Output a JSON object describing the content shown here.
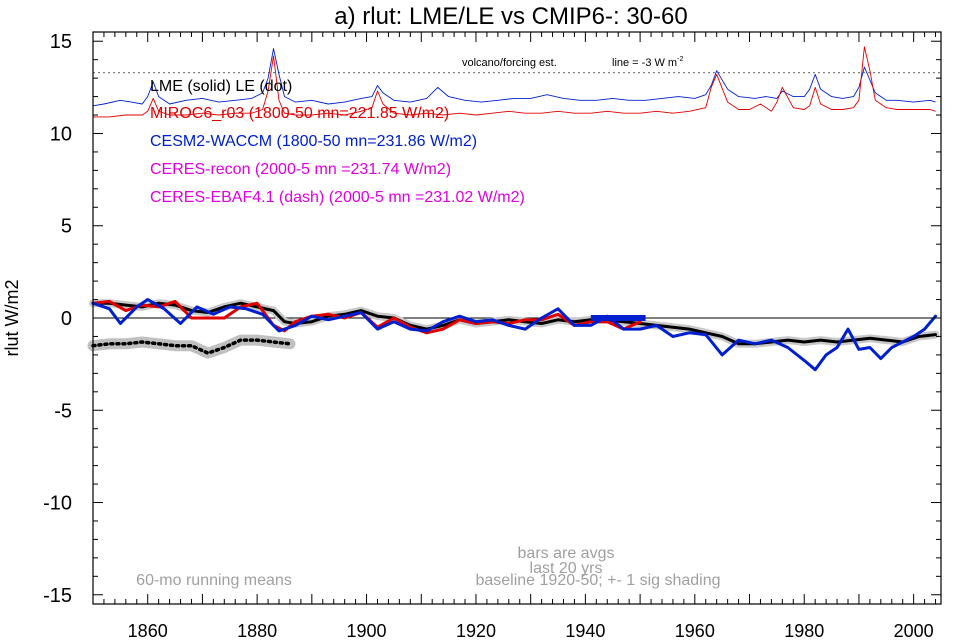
{
  "chart_data": {
    "type": "line",
    "title": "a) rlut: LME/LE vs CMIP6-: 30-60",
    "ylabel": "rlut W/m2",
    "xlabel": "",
    "xlim": [
      1850,
      2005
    ],
    "ylim": [
      -15.5,
      15.5
    ],
    "x_ticks": [
      1860,
      1880,
      1900,
      1920,
      1940,
      1960,
      1980,
      2000
    ],
    "y_ticks": [
      -15,
      -10,
      -5,
      0,
      5,
      10,
      15
    ],
    "grid": false,
    "zero_line": 0,
    "volcano_reference": {
      "label": "volcano/forcing est.",
      "line_label": "line = -3 W m",
      "line_label_sup": "-2",
      "y": 13.3
    },
    "legend": [
      {
        "text": "LME (solid)   LE (dot)",
        "color": "#000000"
      },
      {
        "text": "MIROC6_r03 (1800-50 mn=221.85 W/m2)",
        "color": "#e00000"
      },
      {
        "text": "CESM2-WACCM (1800-50 mn=231.86 W/m2)",
        "color": "#0020d0"
      },
      {
        "text": "CERES-recon (2000-5 mn =231.74 W/m2)",
        "color": "#e000e0"
      },
      {
        "text": "CERES-EBAF4.1 (dash) (2000-5 mn =231.02 W/m2)",
        "color": "#e000e0"
      }
    ],
    "legend_position": "top-left",
    "annotations": [
      {
        "text": "bars are avgs",
        "color": "#a0a0a0"
      },
      {
        "text": "last 20 yrs",
        "color": "#a0a0a0"
      },
      {
        "text": "baseline 1920-50; +- 1 sig shading",
        "color": "#a0a0a0"
      },
      {
        "text": "60-mo running means",
        "color": "#a0a0a0"
      }
    ],
    "bar": {
      "x": [
        1941,
        1951
      ],
      "y": 0,
      "color": "#0020d0"
    },
    "series": [
      {
        "name": "LME (solid)",
        "color": "#000000",
        "style": "solid",
        "x": [
          1850,
          1853,
          1856,
          1859,
          1862,
          1865,
          1868,
          1871,
          1874,
          1877,
          1880,
          1883,
          1885,
          1887,
          1890,
          1893,
          1896,
          1899,
          1902,
          1905,
          1908,
          1911,
          1914,
          1917,
          1920,
          1923,
          1926,
          1929,
          1932,
          1935,
          1938,
          1941,
          1944,
          1947,
          1950,
          1953,
          1956,
          1959,
          1962,
          1965,
          1968,
          1971,
          1974,
          1977,
          1980,
          1983,
          1986,
          1989,
          1992,
          1995,
          1998,
          2001,
          2004
        ],
        "y": [
          0.8,
          0.8,
          0.7,
          0.6,
          0.8,
          0.7,
          0.4,
          0.3,
          0.6,
          0.8,
          0.6,
          0.4,
          -0.2,
          -0.3,
          -0.2,
          0.1,
          0.2,
          0.4,
          0.1,
          0.0,
          -0.4,
          -0.6,
          -0.4,
          -0.1,
          -0.3,
          -0.2,
          -0.1,
          -0.2,
          -0.3,
          -0.1,
          -0.2,
          -0.1,
          -0.1,
          -0.2,
          -0.3,
          -0.4,
          -0.5,
          -0.6,
          -0.8,
          -1.0,
          -1.4,
          -1.4,
          -1.3,
          -1.2,
          -1.3,
          -1.2,
          -1.3,
          -1.2,
          -1.1,
          -1.2,
          -1.3,
          -1.0,
          -0.9
        ]
      },
      {
        "name": "LE (dot)",
        "color": "#000000",
        "style": "dot",
        "x": [
          1850,
          1853,
          1856,
          1859,
          1862,
          1865,
          1868,
          1871,
          1874,
          1877,
          1880,
          1883,
          1886
        ],
        "y": [
          -1.5,
          -1.4,
          -1.4,
          -1.3,
          -1.4,
          -1.5,
          -1.5,
          -1.9,
          -1.6,
          -1.2,
          -1.2,
          -1.3,
          -1.4
        ]
      },
      {
        "name": "MIROC6_r03",
        "color": "#e00000",
        "style": "solid",
        "x": [
          1850,
          1853,
          1856,
          1859,
          1862,
          1865,
          1868,
          1871,
          1874,
          1877,
          1880,
          1883,
          1885,
          1887,
          1890,
          1893,
          1896,
          1899,
          1902,
          1905,
          1908,
          1911,
          1914,
          1917,
          1920,
          1923,
          1926,
          1929,
          1932,
          1935,
          1938,
          1941,
          1944,
          1947,
          1950
        ],
        "y": [
          0.8,
          0.9,
          0.4,
          0.7,
          0.6,
          0.9,
          0.0,
          0.0,
          0.0,
          0.6,
          0.8,
          -0.4,
          -0.7,
          -0.2,
          0.1,
          0.2,
          0.0,
          0.3,
          -0.5,
          0.0,
          -0.5,
          -0.8,
          -0.6,
          -0.1,
          -0.3,
          -0.2,
          -0.3,
          -0.1,
          -0.1,
          0.2,
          -0.4,
          -0.2,
          -0.2,
          -0.6,
          -0.2
        ]
      },
      {
        "name": "CESM2-WACCM",
        "color": "#0020d0",
        "style": "solid",
        "x": [
          1850,
          1853,
          1855,
          1858,
          1860,
          1863,
          1866,
          1869,
          1872,
          1875,
          1878,
          1881,
          1884,
          1887,
          1890,
          1893,
          1896,
          1899,
          1902,
          1905,
          1908,
          1911,
          1914,
          1917,
          1920,
          1923,
          1926,
          1929,
          1932,
          1935,
          1938,
          1941,
          1944,
          1947,
          1950,
          1953,
          1956,
          1959,
          1962,
          1965,
          1968,
          1971,
          1974,
          1977,
          1980,
          1982,
          1984,
          1986,
          1988,
          1990,
          1992,
          1994,
          1996,
          1998,
          2000,
          2002,
          2004
        ],
        "y": [
          0.8,
          0.5,
          -0.3,
          0.6,
          1.0,
          0.5,
          -0.3,
          0.6,
          0.2,
          0.6,
          0.5,
          0.2,
          -0.7,
          -0.4,
          0.1,
          -0.1,
          0.1,
          0.3,
          -0.6,
          -0.2,
          -0.6,
          -0.7,
          -0.2,
          0.1,
          -0.2,
          -0.1,
          -0.4,
          -0.6,
          0.0,
          0.5,
          -0.4,
          -0.4,
          0.1,
          -0.6,
          -0.6,
          -0.4,
          -1.0,
          -0.8,
          -0.9,
          -2.0,
          -1.2,
          -1.4,
          -1.2,
          -1.6,
          -2.3,
          -2.8,
          -2.0,
          -1.6,
          -0.6,
          -1.7,
          -1.6,
          -2.2,
          -1.6,
          -1.3,
          -1.0,
          -0.6,
          0.1
        ]
      }
    ],
    "forcing_series": [
      {
        "name": "CESM2-WACCM forcing",
        "color": "#0020d0",
        "x": [
          1850,
          1852,
          1855,
          1857,
          1859,
          1860,
          1861,
          1862,
          1864,
          1867,
          1870,
          1873,
          1876,
          1879,
          1881,
          1882,
          1883,
          1884,
          1885,
          1887,
          1890,
          1893,
          1896,
          1899,
          1901,
          1902,
          1903,
          1905,
          1908,
          1911,
          1912,
          1913,
          1915,
          1918,
          1921,
          1924,
          1927,
          1930,
          1933,
          1936,
          1939,
          1942,
          1945,
          1948,
          1951,
          1954,
          1957,
          1960,
          1962,
          1963,
          1964,
          1966,
          1968,
          1971,
          1973,
          1975,
          1976,
          1978,
          1980,
          1981,
          1982,
          1983,
          1985,
          1987,
          1989,
          1990,
          1991,
          1992,
          1993,
          1995,
          1997,
          2000,
          2003,
          2004
        ],
        "y": [
          11.5,
          11.6,
          11.8,
          11.7,
          11.6,
          12.0,
          12.8,
          12.0,
          11.6,
          11.8,
          11.9,
          11.7,
          11.8,
          11.9,
          12.2,
          13.0,
          14.6,
          13.2,
          12.0,
          11.7,
          11.8,
          11.6,
          11.7,
          11.9,
          12.0,
          12.6,
          12.2,
          11.8,
          11.7,
          11.9,
          12.2,
          12.5,
          12.0,
          11.8,
          11.7,
          11.8,
          11.9,
          11.9,
          12.1,
          11.9,
          11.8,
          11.8,
          11.9,
          11.8,
          11.8,
          11.9,
          12.0,
          11.9,
          12.1,
          12.6,
          13.4,
          12.4,
          12.0,
          11.9,
          12.0,
          11.9,
          12.3,
          12.0,
          12.0,
          12.4,
          13.2,
          12.4,
          12.0,
          11.9,
          12.0,
          12.5,
          13.6,
          12.9,
          12.2,
          11.8,
          11.8,
          11.7,
          11.8,
          11.7
        ]
      },
      {
        "name": "MIROC6_r03 forcing",
        "color": "#e00000",
        "x": [
          1850,
          1853,
          1856,
          1859,
          1860,
          1861,
          1862,
          1864,
          1867,
          1870,
          1873,
          1876,
          1879,
          1881,
          1882,
          1883,
          1884,
          1885,
          1887,
          1890,
          1893,
          1896,
          1899,
          1901,
          1902,
          1903,
          1905,
          1908,
          1911,
          1914,
          1917,
          1920,
          1923,
          1926,
          1929,
          1932,
          1935,
          1938,
          1941,
          1944,
          1947,
          1950,
          1953,
          1956,
          1959,
          1962,
          1963,
          1964,
          1966,
          1968,
          1970,
          1972,
          1974,
          1975,
          1976,
          1978,
          1980,
          1981,
          1982,
          1983,
          1985,
          1987,
          1989,
          1990,
          1991,
          1992,
          1993,
          1995,
          1997,
          2000,
          2003,
          2004
        ],
        "y": [
          10.9,
          10.9,
          11.0,
          11.0,
          11.2,
          11.9,
          11.2,
          11.0,
          11.0,
          11.1,
          11.0,
          11.1,
          11.1,
          11.3,
          12.3,
          14.2,
          11.8,
          11.1,
          11.0,
          11.0,
          11.1,
          11.0,
          11.2,
          11.4,
          12.3,
          11.6,
          11.1,
          11.0,
          11.1,
          11.0,
          11.1,
          11.0,
          11.1,
          11.2,
          11.1,
          11.1,
          11.2,
          11.1,
          11.1,
          11.2,
          11.1,
          11.1,
          11.2,
          11.1,
          11.2,
          11.4,
          12.5,
          13.2,
          11.7,
          11.3,
          11.3,
          11.6,
          11.2,
          11.7,
          12.5,
          11.4,
          11.3,
          11.5,
          12.5,
          11.6,
          11.3,
          11.3,
          11.4,
          11.8,
          14.7,
          13.4,
          11.8,
          11.4,
          11.3,
          11.3,
          11.3,
          11.2
        ]
      }
    ]
  }
}
